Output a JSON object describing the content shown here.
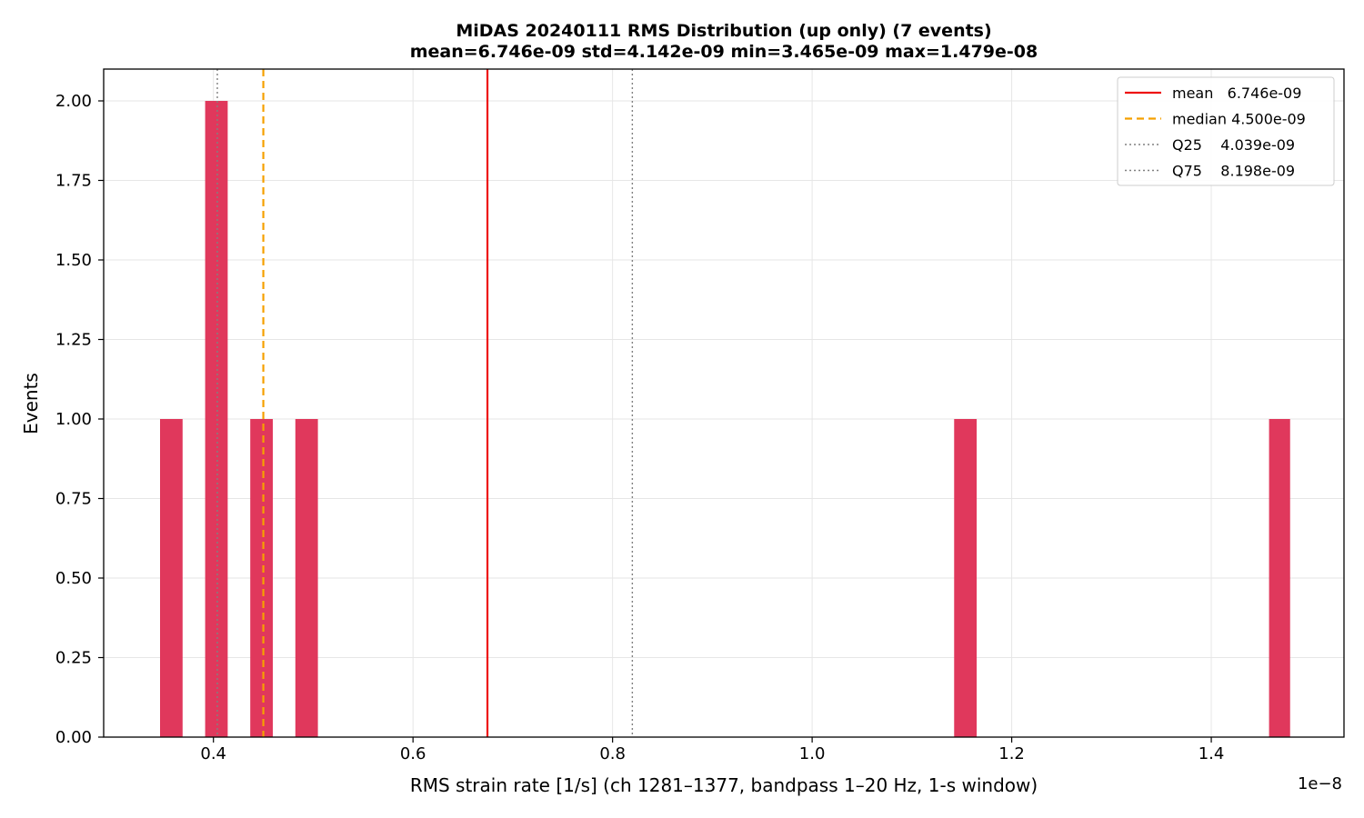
{
  "chart_data": {
    "type": "bar",
    "title": "MiDAS 20240111  RMS Distribution  (up only)  (7 events)",
    "subtitle": "mean=6.746e-09  std=4.142e-09  min=3.465e-09  max=1.479e-08",
    "xlabel": "RMS strain rate [1/s]  (ch 1281–1377, bandpass 1–20 Hz, 1-s window)",
    "ylabel": "Events",
    "x_offset_label": "1e−8",
    "xlim": [
      0.29,
      1.533
    ],
    "ylim": [
      0,
      2.1
    ],
    "x_ticks": [
      {
        "value": 0.4,
        "label": "0.4"
      },
      {
        "value": 0.6,
        "label": "0.6"
      },
      {
        "value": 0.8,
        "label": "0.8"
      },
      {
        "value": 1.0,
        "label": "1.0"
      },
      {
        "value": 1.2,
        "label": "1.2"
      },
      {
        "value": 1.4,
        "label": "1.4"
      }
    ],
    "y_ticks": [
      {
        "value": 0.0,
        "label": "0.00"
      },
      {
        "value": 0.25,
        "label": "0.25"
      },
      {
        "value": 0.5,
        "label": "0.50"
      },
      {
        "value": 0.75,
        "label": "0.75"
      },
      {
        "value": 1.0,
        "label": "1.00"
      },
      {
        "value": 1.25,
        "label": "1.25"
      },
      {
        "value": 1.5,
        "label": "1.50"
      },
      {
        "value": 1.75,
        "label": "1.75"
      },
      {
        "value": 2.0,
        "label": "2.00"
      }
    ],
    "grid": true,
    "bar_color": "#e0385c",
    "bins": [
      {
        "x0": 0.3465,
        "x1": 0.3691,
        "count": 1
      },
      {
        "x0": 0.3917,
        "x1": 0.4143,
        "count": 2
      },
      {
        "x0": 0.4369,
        "x1": 0.4595,
        "count": 1
      },
      {
        "x0": 0.4821,
        "x1": 0.5047,
        "count": 1
      },
      {
        "x0": 1.1423,
        "x1": 1.1649,
        "count": 1
      },
      {
        "x0": 1.4579,
        "x1": 1.479,
        "count": 1
      }
    ],
    "reference_lines": [
      {
        "label": "mean   6.746e-09",
        "x": 0.6746,
        "color": "#ee1111",
        "style": "solid"
      },
      {
        "label": "median 4.500e-09",
        "x": 0.45,
        "color": "#f5a000",
        "style": "dashed"
      },
      {
        "label": "Q25    4.039e-09",
        "x": 0.4039,
        "color": "#808080",
        "style": "dotted"
      },
      {
        "label": "Q75    8.198e-09",
        "x": 0.8198,
        "color": "#808080",
        "style": "dotted"
      }
    ],
    "legend_position": "top-right"
  }
}
